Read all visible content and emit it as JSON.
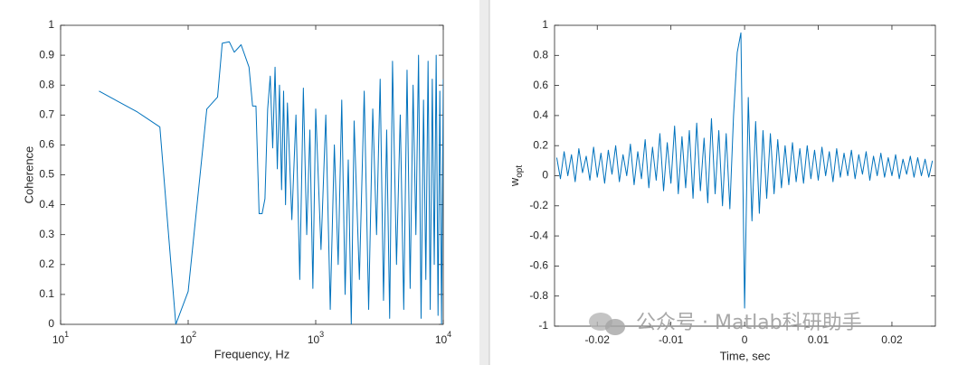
{
  "chart_data": [
    {
      "type": "line",
      "xscale": "log",
      "xlabel": "Frequency, Hz",
      "ylabel": "Coherence",
      "color": "#0072bd",
      "xlim": [
        10,
        10000
      ],
      "ylim": [
        0,
        1
      ],
      "xticks": [
        {
          "value": 10,
          "label": "10",
          "exponent": "1"
        },
        {
          "value": 100,
          "label": "10",
          "exponent": "2"
        },
        {
          "value": 1000,
          "label": "10",
          "exponent": "3"
        },
        {
          "value": 10000,
          "label": "10",
          "exponent": "4"
        }
      ],
      "yticks": [
        0,
        0.1,
        0.2,
        0.3,
        0.4,
        0.5,
        0.6,
        0.7,
        0.8,
        0.9,
        1
      ],
      "x": [
        20,
        40,
        60,
        80,
        100,
        140,
        170,
        185,
        210,
        230,
        260,
        300,
        320,
        340,
        360,
        380,
        400,
        420,
        440,
        460,
        480,
        500,
        520,
        540,
        560,
        580,
        600,
        650,
        700,
        750,
        800,
        850,
        900,
        950,
        1000,
        1100,
        1200,
        1300,
        1400,
        1500,
        1600,
        1700,
        1800,
        1900,
        2000,
        2200,
        2400,
        2600,
        2800,
        3000,
        3200,
        3400,
        3600,
        3800,
        4000,
        4300,
        4600,
        4900,
        5200,
        5500,
        5800,
        6100,
        6400,
        6700,
        7000,
        7300,
        7600,
        7900,
        8200,
        8500,
        8800,
        9100,
        9400,
        9700,
        10000
      ],
      "values": [
        0.78,
        0.71,
        0.66,
        0,
        0.11,
        0.72,
        0.76,
        0.94,
        0.945,
        0.91,
        0.935,
        0.86,
        0.73,
        0.73,
        0.37,
        0.37,
        0.42,
        0.72,
        0.83,
        0.59,
        0.86,
        0.52,
        0.8,
        0.45,
        0.78,
        0.4,
        0.74,
        0.35,
        0.7,
        0.15,
        0.79,
        0.3,
        0.65,
        0.12,
        0.72,
        0.25,
        0.7,
        0.05,
        0.6,
        0.2,
        0.75,
        0.1,
        0.55,
        0,
        0.68,
        0.15,
        0.78,
        0.05,
        0.72,
        0.3,
        0.82,
        0.08,
        0.65,
        0.02,
        0.88,
        0.2,
        0.7,
        0.05,
        0.85,
        0.12,
        0.8,
        0.3,
        0.9,
        0.02,
        0.75,
        0.15,
        0.88,
        0.05,
        0.82,
        0.2,
        0.9,
        0.03,
        0.78,
        0,
        0.82
      ]
    },
    {
      "type": "line",
      "xlabel": "Time, sec",
      "ylabel": {
        "text": "w",
        "subscript": "opt"
      },
      "color": "#0072bd",
      "xlim": [
        -0.0258,
        0.0259
      ],
      "ylim": [
        -1,
        1
      ],
      "xticks": [
        -0.02,
        -0.01,
        0,
        0.01,
        0.02
      ],
      "yticks": [
        -1,
        -0.8,
        -0.6,
        -0.4,
        -0.2,
        0,
        0.2,
        0.4,
        0.6,
        0.8,
        1
      ],
      "x": [
        -0.0255,
        -0.025,
        -0.0245,
        -0.024,
        -0.0235,
        -0.023,
        -0.0225,
        -0.022,
        -0.0215,
        -0.021,
        -0.0205,
        -0.02,
        -0.0195,
        -0.019,
        -0.0185,
        -0.018,
        -0.0175,
        -0.017,
        -0.0165,
        -0.016,
        -0.0155,
        -0.015,
        -0.0145,
        -0.014,
        -0.0135,
        -0.013,
        -0.0125,
        -0.012,
        -0.0115,
        -0.011,
        -0.0105,
        -0.01,
        -0.0095,
        -0.009,
        -0.0085,
        -0.008,
        -0.0075,
        -0.007,
        -0.0065,
        -0.006,
        -0.0055,
        -0.005,
        -0.0045,
        -0.004,
        -0.0035,
        -0.003,
        -0.0025,
        -0.002,
        -0.0015,
        -0.001,
        -0.0005,
        0,
        0.0005,
        0.001,
        0.0015,
        0.002,
        0.0025,
        0.003,
        0.0035,
        0.004,
        0.0045,
        0.005,
        0.0055,
        0.006,
        0.0065,
        0.007,
        0.0075,
        0.008,
        0.0085,
        0.009,
        0.0095,
        0.01,
        0.0105,
        0.011,
        0.0115,
        0.012,
        0.0125,
        0.013,
        0.0135,
        0.014,
        0.0145,
        0.015,
        0.0155,
        0.016,
        0.0165,
        0.017,
        0.0175,
        0.018,
        0.0185,
        0.019,
        0.0195,
        0.02,
        0.0205,
        0.021,
        0.0215,
        0.022,
        0.0225,
        0.023,
        0.0235,
        0.024,
        0.0245,
        0.025,
        0.0255
      ],
      "values": [
        0.12,
        -0.02,
        0.16,
        0,
        0.14,
        -0.04,
        0.18,
        0.02,
        0.13,
        -0.03,
        0.19,
        -0.01,
        0.15,
        -0.05,
        0.17,
        0.01,
        0.2,
        -0.04,
        0.14,
        0,
        0.21,
        -0.06,
        0.16,
        -0.02,
        0.24,
        -0.08,
        0.19,
        -0.03,
        0.28,
        -0.1,
        0.22,
        -0.05,
        0.33,
        -0.12,
        0.26,
        -0.08,
        0.3,
        -0.15,
        0.35,
        -0.1,
        0.25,
        -0.18,
        0.38,
        -0.12,
        0.3,
        -0.2,
        0.28,
        -0.22,
        0.4,
        0.82,
        0.95,
        -0.88,
        0.52,
        -0.3,
        0.36,
        -0.25,
        0.3,
        -0.15,
        0.28,
        -0.12,
        0.24,
        -0.08,
        0.2,
        -0.06,
        0.22,
        -0.04,
        0.18,
        -0.05,
        0.2,
        -0.02,
        0.17,
        -0.03,
        0.19,
        0,
        0.16,
        -0.04,
        0.18,
        -0.01,
        0.15,
        0,
        0.17,
        -0.02,
        0.14,
        0.01,
        0.16,
        -0.03,
        0.13,
        0,
        0.15,
        -0.01,
        0.12,
        0,
        0.14,
        -0.02,
        0.11,
        0.01,
        0.13,
        -0.01,
        0.12,
        0,
        0.11,
        -0.01,
        0.1
      ]
    }
  ],
  "watermark": "公众号 · Matlab科研助手"
}
